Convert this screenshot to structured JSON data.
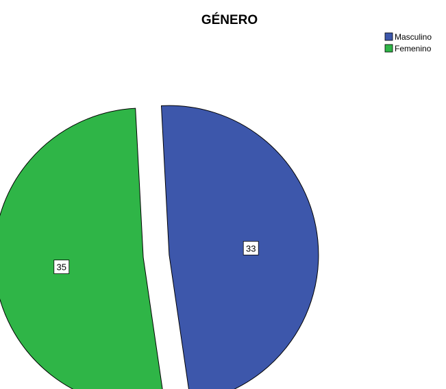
{
  "chart_data": {
    "type": "pie",
    "title": "GÉNERO",
    "categories": [
      "Masculino",
      "Femenino"
    ],
    "values": [
      33,
      35
    ],
    "colors": [
      "#3d57ab",
      "#2fb547"
    ],
    "legend": {
      "placement": "top-right",
      "entries": [
        "Masculino",
        "Femenino"
      ]
    },
    "exploded": true
  }
}
